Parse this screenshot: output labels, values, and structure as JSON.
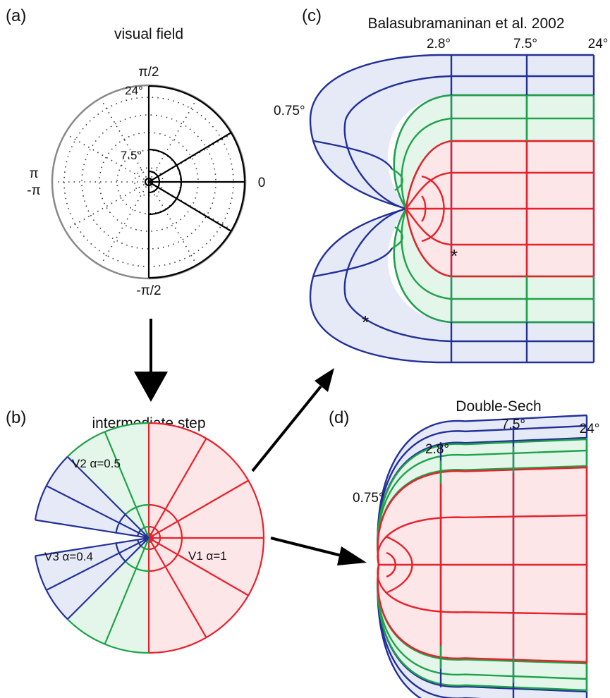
{
  "colors": {
    "v1_line": "#e8202a",
    "v1_fill": "#fde6e8",
    "v2_line": "#1fa34a",
    "v2_fill": "#e4f5ea",
    "v3_line": "#23309a",
    "v3_fill": "#e6eaf6",
    "grid_dot": "#333333",
    "outer_circle": "#888888"
  },
  "panel_a": {
    "label": "(a)",
    "title": "visual field",
    "angle_top": "π/2",
    "angle_right": "0",
    "angle_left_pos": "π",
    "angle_left_neg": "-π",
    "angle_bottom": "-π/2",
    "ecc_outer": "24°",
    "ecc_mid": "7.5°"
  },
  "panel_b": {
    "label": "(b)",
    "title": "intermediate step",
    "v1_label": "V1 α=1",
    "v2_label": "V2 α=0.5",
    "v3_label": "V3 α=0.4"
  },
  "panel_c": {
    "label": "(c)",
    "title": "Balasubramaninan et al. 2002",
    "ecc_labels": [
      "0.75°",
      "2.8°",
      "7.5°",
      "24°"
    ],
    "marker": "*"
  },
  "panel_d": {
    "label": "(d)",
    "title": "Double-Sech",
    "ecc_labels": [
      "0.75°",
      "2.8°",
      "7.5°",
      "24°"
    ]
  }
}
